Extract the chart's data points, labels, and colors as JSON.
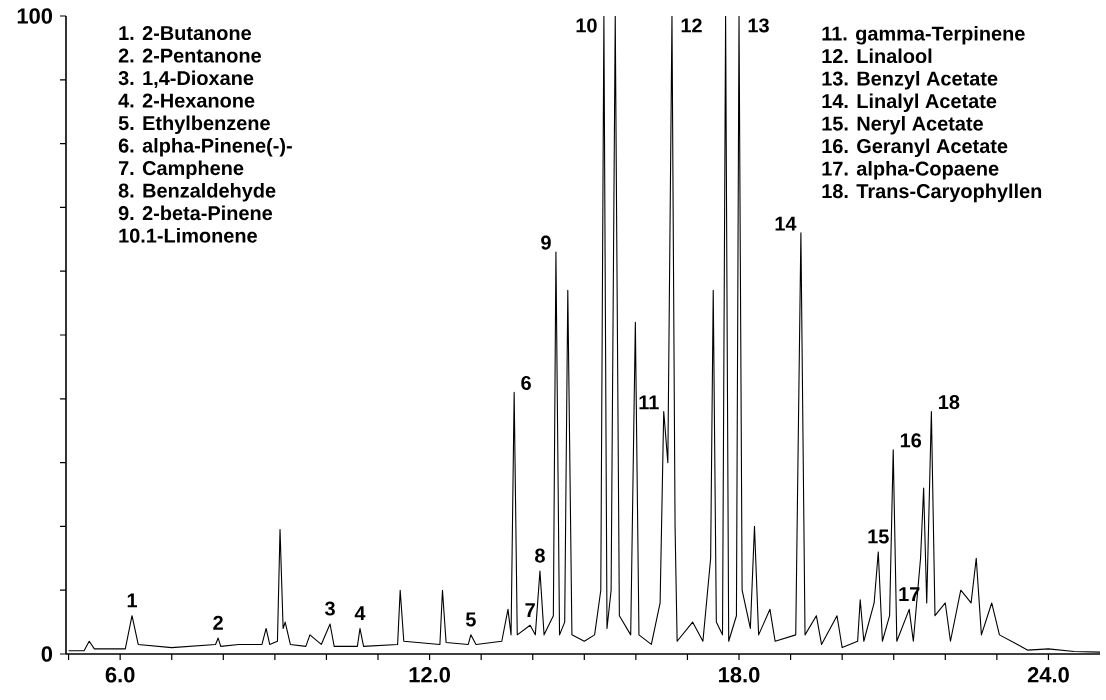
{
  "chart_data": {
    "type": "line",
    "xlim": [
      4.95,
      25
    ],
    "ylim": [
      0,
      100
    ],
    "xticks": [
      {
        "value": 5,
        "label": null
      },
      {
        "value": 6,
        "label": "6.0"
      },
      {
        "value": 7,
        "label": null
      },
      {
        "value": 8,
        "label": null
      },
      {
        "value": 9,
        "label": null
      },
      {
        "value": 10,
        "label": null
      },
      {
        "value": 11,
        "label": null
      },
      {
        "value": 12,
        "label": "12.0"
      },
      {
        "value": 13,
        "label": null
      },
      {
        "value": 14,
        "label": null
      },
      {
        "value": 15,
        "label": null
      },
      {
        "value": 16,
        "label": null
      },
      {
        "value": 17,
        "label": null
      },
      {
        "value": 18,
        "label": "18.0"
      },
      {
        "value": 19,
        "label": null
      },
      {
        "value": 20,
        "label": null
      },
      {
        "value": 21,
        "label": null
      },
      {
        "value": 22,
        "label": null
      },
      {
        "value": 23,
        "label": null
      },
      {
        "value": 24,
        "label": "24.0"
      }
    ],
    "yticks": [
      0,
      {
        "value": 10,
        "label": null
      },
      {
        "value": 20,
        "label": null
      },
      {
        "value": 30,
        "label": null
      },
      {
        "value": 40,
        "label": null
      },
      {
        "value": 50,
        "label": null
      },
      {
        "value": 60,
        "label": null
      },
      {
        "value": 70,
        "label": null
      },
      {
        "value": 80,
        "label": null
      },
      {
        "value": 90,
        "label": null
      },
      100
    ],
    "marker": "none",
    "line_style": "solid",
    "series": [
      {
        "color": "#000000",
        "x": [
          5.0,
          5.3,
          5.4,
          5.5,
          6.1,
          6.23,
          6.35,
          7.0,
          7.85,
          7.9,
          7.95,
          8.3,
          8.75,
          8.83,
          8.9,
          9.05,
          9.1,
          9.16,
          9.2,
          9.3,
          9.6,
          9.68,
          9.9,
          10.07,
          10.15,
          10.6,
          10.65,
          10.72,
          11.38,
          11.43,
          11.5,
          12.2,
          12.25,
          12.32,
          12.75,
          12.8,
          12.9,
          13.4,
          13.52,
          13.58,
          13.64,
          13.7,
          13.95,
          14.05,
          14.14,
          14.22,
          14.4,
          14.45,
          14.52,
          14.62,
          14.68,
          14.76,
          15.0,
          15.2,
          15.32,
          15.38,
          15.44,
          15.52,
          15.6,
          15.68,
          15.9,
          15.99,
          16.06,
          16.3,
          16.47,
          16.54,
          16.62,
          16.7,
          16.76,
          16.8,
          17.1,
          17.3,
          17.45,
          17.5,
          17.56,
          17.68,
          17.74,
          17.8,
          17.95,
          18.0,
          18.06,
          18.22,
          18.3,
          18.38,
          18.6,
          18.7,
          19.1,
          19.2,
          19.28,
          19.5,
          19.6,
          19.9,
          20.0,
          20.3,
          20.35,
          20.42,
          20.62,
          20.7,
          20.78,
          20.92,
          20.99,
          21.06,
          21.3,
          21.38,
          21.52,
          21.58,
          21.64,
          21.73,
          21.8,
          22.0,
          22.1,
          22.3,
          22.5,
          22.6,
          22.7,
          22.9,
          23.05,
          23.4,
          23.6,
          24.0,
          24.5,
          25.0
        ],
        "values": [
          0.5,
          0.5,
          2,
          0.8,
          0.8,
          6,
          1.5,
          1,
          1.5,
          2.5,
          1.2,
          1.5,
          1.5,
          4,
          1.5,
          2,
          19.5,
          4,
          5,
          1.5,
          1.2,
          3,
          1.5,
          4.7,
          1.2,
          1.2,
          4,
          1.2,
          1.5,
          10,
          2,
          1.5,
          10,
          1.8,
          1.5,
          3,
          1.5,
          2,
          7,
          3,
          41,
          3,
          4.5,
          3,
          13,
          3,
          6,
          63,
          3,
          5,
          57,
          3,
          2,
          3,
          10,
          100,
          4,
          10,
          100,
          6,
          3,
          52,
          3,
          1.5,
          8,
          38,
          30,
          100,
          20,
          2,
          5,
          2,
          15,
          57,
          5,
          3,
          100,
          2,
          6,
          100,
          10,
          4,
          20,
          3,
          7,
          2,
          3,
          66,
          3,
          6,
          1.5,
          6,
          1,
          2,
          8.5,
          2,
          8,
          16,
          2,
          6,
          32,
          2,
          7,
          2,
          15,
          26,
          8,
          38,
          6,
          8,
          2,
          10,
          8,
          15,
          3,
          8,
          3,
          1.5,
          0.6,
          0.8,
          0.4,
          0.3
        ]
      }
    ],
    "annotations": [
      {
        "text": "1",
        "x": 6.23,
        "y": 6
      },
      {
        "text": "2",
        "x": 7.9,
        "y": 2.5
      },
      {
        "text": "3",
        "x": 10.07,
        "y": 4.7
      },
      {
        "text": "4",
        "x": 10.65,
        "y": 4
      },
      {
        "text": "5",
        "x": 12.8,
        "y": 3
      },
      {
        "text": "6",
        "x": 13.64,
        "y": 41
      },
      {
        "text": "7",
        "x": 13.95,
        "y": 4.5
      },
      {
        "text": "8",
        "x": 14.14,
        "y": 13
      },
      {
        "text": "9",
        "x": 14.45,
        "y": 63
      },
      {
        "text": "10",
        "x": 15.38,
        "y": 100
      },
      {
        "text": "11",
        "x": 16.54,
        "y": 38
      },
      {
        "text": "12",
        "x": 16.7,
        "y": 100
      },
      {
        "text": "13",
        "x": 18.0,
        "y": 100
      },
      {
        "text": "14",
        "x": 19.2,
        "y": 66
      },
      {
        "text": "15",
        "x": 20.7,
        "y": 16
      },
      {
        "text": "16",
        "x": 20.99,
        "y": 32
      },
      {
        "text": "17",
        "x": 21.3,
        "y": 7
      },
      {
        "text": "18",
        "x": 21.73,
        "y": 38
      },
      "1.  2-Butanone",
      "2.  2-Pentanone",
      "3.  1,4-Dioxane",
      "4.  2-Hexanone",
      "5.  Ethylbenzene",
      "6.  alpha-Pinene(-)-",
      "7.  Camphene",
      "8.  Benzaldehyde",
      "9.  2-beta-Pinene",
      "10.1-Limonene",
      "11. gamma-Terpinene",
      "12. Linalool",
      "13. Benzyl Acetate",
      "14. Linalyl Acetate",
      "15. Neryl Acetate",
      "16. Geranyl Acetate",
      "17. alpha-Copaene",
      "18. Trans-Caryophyllen"
    ]
  }
}
